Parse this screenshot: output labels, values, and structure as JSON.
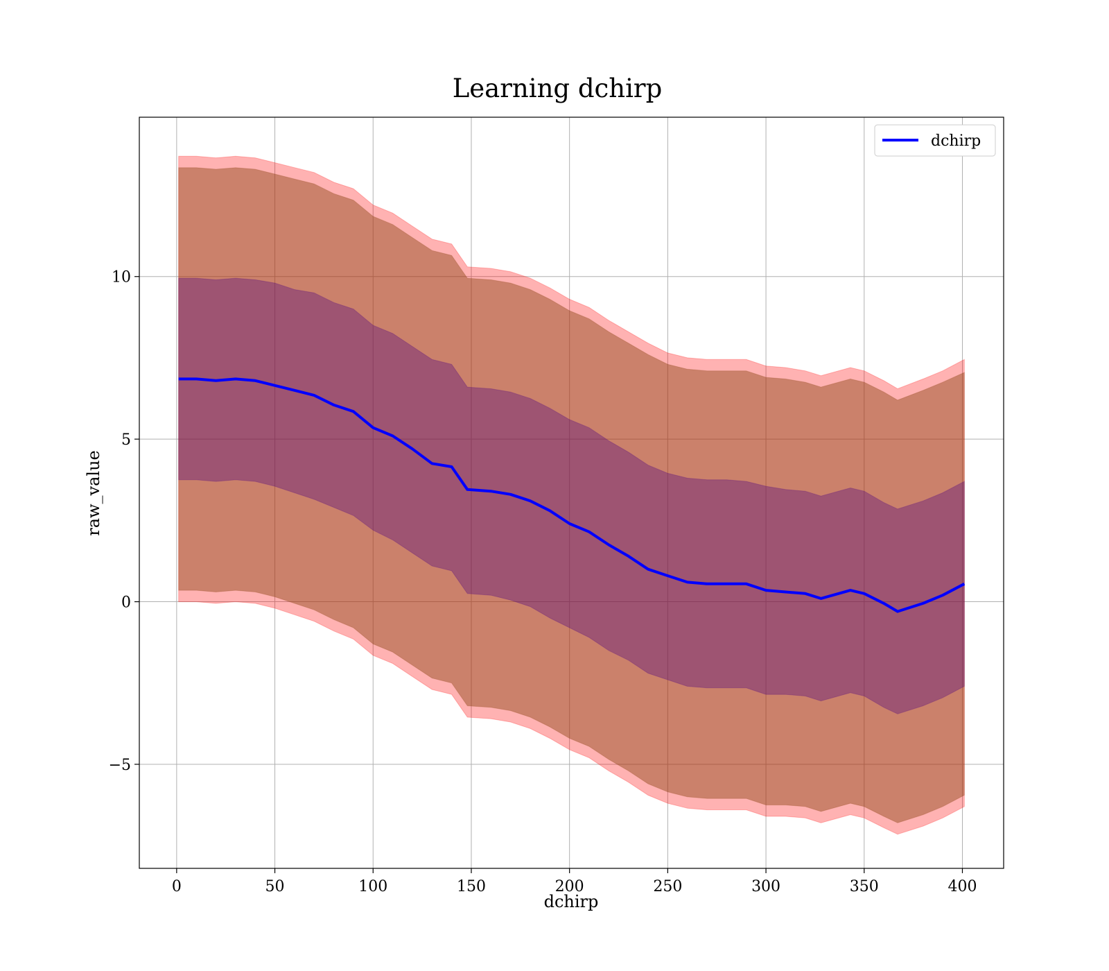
{
  "chart_data": {
    "type": "line",
    "title": "Learning dchirp",
    "xlabel": "dchirp",
    "ylabel": "raw_value",
    "xlim": [
      -19,
      421
    ],
    "ylim": [
      -8.2,
      14.9
    ],
    "xticks": [
      0,
      50,
      100,
      150,
      200,
      250,
      300,
      350,
      400
    ],
    "xtick_labels": [
      "0",
      "50",
      "100",
      "150",
      "200",
      "250",
      "300",
      "350",
      "400"
    ],
    "yticks": [
      -5,
      0,
      5,
      10
    ],
    "ytick_labels": [
      "−5",
      "0",
      "5",
      "10"
    ],
    "grid": true,
    "legend": {
      "placement": "top-right",
      "entries": [
        "dchirp"
      ]
    },
    "colors": {
      "line": "#0000ff",
      "outer_band": "#ff0000",
      "band_2sd": "#8b4513",
      "band_1sd": "#4b0082",
      "grid": "#b0b0b0"
    },
    "x": [
      1,
      10,
      20,
      30,
      40,
      50,
      60,
      70,
      80,
      90,
      100,
      110,
      120,
      130,
      140,
      148,
      160,
      170,
      180,
      190,
      200,
      210,
      220,
      230,
      240,
      250,
      260,
      270,
      280,
      290,
      300,
      310,
      320,
      328,
      343,
      350,
      360,
      367,
      380,
      390,
      401
    ],
    "series": [
      {
        "name": "dchirp",
        "role": "mean",
        "values": [
          6.85,
          6.85,
          6.8,
          6.85,
          6.8,
          6.65,
          6.5,
          6.35,
          6.05,
          5.85,
          5.35,
          5.1,
          4.7,
          4.25,
          4.15,
          3.45,
          3.4,
          3.3,
          3.1,
          2.8,
          2.4,
          2.15,
          1.75,
          1.4,
          1.0,
          0.8,
          0.6,
          0.55,
          0.55,
          0.55,
          0.35,
          0.3,
          0.25,
          0.1,
          0.35,
          0.25,
          -0.05,
          -0.3,
          -0.05,
          0.2,
          0.55
        ]
      },
      {
        "name": "",
        "role": "band_1sd",
        "lower": [
          3.75,
          3.75,
          3.7,
          3.75,
          3.7,
          3.55,
          3.35,
          3.15,
          2.9,
          2.65,
          2.2,
          1.9,
          1.5,
          1.1,
          0.95,
          0.25,
          0.2,
          0.05,
          -0.15,
          -0.5,
          -0.8,
          -1.1,
          -1.5,
          -1.8,
          -2.2,
          -2.4,
          -2.6,
          -2.65,
          -2.65,
          -2.65,
          -2.85,
          -2.85,
          -2.9,
          -3.05,
          -2.8,
          -2.9,
          -3.25,
          -3.45,
          -3.2,
          -2.95,
          -2.6
        ],
        "upper": [
          9.95,
          9.95,
          9.9,
          9.95,
          9.9,
          9.8,
          9.6,
          9.5,
          9.2,
          9.0,
          8.5,
          8.25,
          7.85,
          7.45,
          7.3,
          6.6,
          6.55,
          6.45,
          6.25,
          5.95,
          5.6,
          5.35,
          4.95,
          4.6,
          4.2,
          3.95,
          3.8,
          3.75,
          3.75,
          3.7,
          3.55,
          3.45,
          3.4,
          3.25,
          3.5,
          3.4,
          3.05,
          2.85,
          3.1,
          3.35,
          3.7
        ]
      },
      {
        "name": "",
        "role": "band_2sd",
        "lower": [
          0.35,
          0.35,
          0.3,
          0.35,
          0.3,
          0.15,
          -0.05,
          -0.25,
          -0.55,
          -0.8,
          -1.3,
          -1.55,
          -1.95,
          -2.35,
          -2.5,
          -3.2,
          -3.25,
          -3.35,
          -3.55,
          -3.85,
          -4.2,
          -4.45,
          -4.85,
          -5.2,
          -5.6,
          -5.85,
          -6.0,
          -6.05,
          -6.05,
          -6.05,
          -6.25,
          -6.25,
          -6.3,
          -6.45,
          -6.2,
          -6.3,
          -6.6,
          -6.8,
          -6.55,
          -6.3,
          -5.95
        ],
        "upper": [
          13.35,
          13.35,
          13.3,
          13.35,
          13.3,
          13.15,
          13.0,
          12.85,
          12.55,
          12.35,
          11.85,
          11.6,
          11.2,
          10.8,
          10.65,
          9.95,
          9.9,
          9.8,
          9.6,
          9.3,
          8.95,
          8.7,
          8.3,
          7.95,
          7.6,
          7.3,
          7.15,
          7.1,
          7.1,
          7.1,
          6.9,
          6.85,
          6.75,
          6.6,
          6.85,
          6.75,
          6.45,
          6.2,
          6.5,
          6.75,
          7.05
        ]
      },
      {
        "name": "",
        "role": "band_outer",
        "lower": [
          0.0,
          0.0,
          -0.05,
          0.0,
          -0.05,
          -0.2,
          -0.4,
          -0.6,
          -0.9,
          -1.15,
          -1.65,
          -1.9,
          -2.3,
          -2.7,
          -2.85,
          -3.55,
          -3.6,
          -3.7,
          -3.9,
          -4.2,
          -4.55,
          -4.8,
          -5.2,
          -5.55,
          -5.95,
          -6.2,
          -6.35,
          -6.4,
          -6.4,
          -6.4,
          -6.6,
          -6.6,
          -6.65,
          -6.8,
          -6.55,
          -6.65,
          -6.95,
          -7.15,
          -6.9,
          -6.65,
          -6.3
        ],
        "upper": [
          13.7,
          13.7,
          13.65,
          13.7,
          13.65,
          13.5,
          13.35,
          13.2,
          12.9,
          12.7,
          12.2,
          11.95,
          11.55,
          11.15,
          11.0,
          10.3,
          10.25,
          10.15,
          9.95,
          9.65,
          9.3,
          9.05,
          8.65,
          8.3,
          7.95,
          7.65,
          7.5,
          7.45,
          7.45,
          7.45,
          7.25,
          7.2,
          7.1,
          6.95,
          7.2,
          7.1,
          6.8,
          6.55,
          6.85,
          7.1,
          7.45
        ]
      }
    ]
  }
}
